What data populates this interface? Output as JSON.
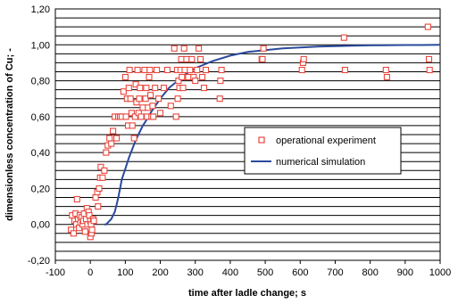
{
  "chart_data": {
    "type": "scatter",
    "title": "",
    "xlabel": "time after ladle change; s",
    "ylabel": "dimensionless concentration of Cu; -",
    "xlim": [
      -100,
      1000
    ],
    "ylim": [
      -0.2,
      1.2
    ],
    "x_ticks": [
      "-100",
      "0",
      "100",
      "200",
      "300",
      "400",
      "500",
      "600",
      "700",
      "800",
      "900",
      "1000"
    ],
    "y_ticks": [
      "-0,20",
      "0,00",
      "0,20",
      "0,40",
      "0,60",
      "0,80",
      "1,00",
      "1,20"
    ],
    "grid": "horizontal",
    "legend_position": "center-right",
    "colors": {
      "experiment": "#e8463c",
      "simulation": "#2a4a9c"
    },
    "series": [
      {
        "name": "operational experiment",
        "kind": "scatter",
        "x": [
          -55,
          -52,
          -48,
          -45,
          -42,
          -40,
          -38,
          -35,
          -32,
          -30,
          -28,
          -25,
          -22,
          -20,
          -18,
          -15,
          -12,
          -10,
          -8,
          -5,
          -3,
          0,
          0,
          2,
          3,
          5,
          8,
          10,
          15,
          20,
          22,
          25,
          28,
          30,
          35,
          40,
          45,
          50,
          55,
          60,
          65,
          70,
          75,
          80,
          85,
          90,
          95,
          100,
          102,
          105,
          108,
          110,
          112,
          115,
          118,
          120,
          125,
          128,
          130,
          132,
          135,
          138,
          140,
          142,
          145,
          150,
          155,
          158,
          160,
          162,
          165,
          168,
          170,
          172,
          175,
          178,
          180,
          185,
          190,
          195,
          200,
          210,
          220,
          230,
          240,
          245,
          248,
          250,
          252,
          255,
          258,
          260,
          262,
          265,
          268,
          270,
          275,
          280,
          285,
          290,
          295,
          300,
          305,
          310,
          315,
          320,
          325,
          330,
          370,
          372,
          375,
          490,
          492,
          495,
          605,
          608,
          610,
          725,
          728,
          845,
          848,
          965,
          968,
          970
        ],
        "y": [
          -0.03,
          0.05,
          -0.05,
          0.02,
          0.06,
          0.0,
          0.14,
          0.03,
          -0.02,
          0.05,
          0.01,
          0.04,
          0.0,
          0.02,
          0.06,
          -0.04,
          0.03,
          0.09,
          0.0,
          0.07,
          0.05,
          -0.07,
          0.02,
          0.0,
          -0.05,
          -0.03,
          0.03,
          0.02,
          0.15,
          0.18,
          0.1,
          0.2,
          0.26,
          0.32,
          0.26,
          0.3,
          0.4,
          0.44,
          0.48,
          0.45,
          0.52,
          0.6,
          0.48,
          0.6,
          0.6,
          0.6,
          0.74,
          0.82,
          0.6,
          0.7,
          0.55,
          0.76,
          0.86,
          0.7,
          0.62,
          0.55,
          0.48,
          0.6,
          0.78,
          0.68,
          0.86,
          0.62,
          0.7,
          0.76,
          0.6,
          0.65,
          0.86,
          0.7,
          0.76,
          0.6,
          0.65,
          0.82,
          0.86,
          0.72,
          0.6,
          0.66,
          0.6,
          0.76,
          0.86,
          0.7,
          0.62,
          0.76,
          0.86,
          0.66,
          0.98,
          0.6,
          0.86,
          0.7,
          0.8,
          0.76,
          0.86,
          0.92,
          0.82,
          0.76,
          0.98,
          0.86,
          0.92,
          0.82,
          0.86,
          0.92,
          0.82,
          0.8,
          0.86,
          0.98,
          0.92,
          0.82,
          0.76,
          0.86,
          0.7,
          0.8,
          0.86,
          0.92,
          0.92,
          0.98,
          0.86,
          0.9,
          0.92,
          1.04,
          0.86,
          0.86,
          0.82,
          1.1,
          0.92,
          0.86
        ]
      },
      {
        "name": "numerical simulation",
        "kind": "line",
        "x": [
          40,
          45,
          50,
          55,
          60,
          65,
          70,
          75,
          80,
          85,
          90,
          100,
          110,
          120,
          130,
          140,
          150,
          160,
          175,
          200,
          225,
          250,
          275,
          300,
          350,
          400,
          450,
          500,
          550,
          600,
          650,
          700,
          750,
          800,
          850,
          900,
          950,
          1000
        ],
        "y": [
          0.0,
          0.0,
          0.01,
          0.02,
          0.03,
          0.05,
          0.07,
          0.11,
          0.15,
          0.2,
          0.25,
          0.31,
          0.37,
          0.42,
          0.47,
          0.51,
          0.55,
          0.58,
          0.63,
          0.7,
          0.76,
          0.8,
          0.84,
          0.87,
          0.91,
          0.94,
          0.96,
          0.97,
          0.98,
          0.985,
          0.99,
          0.993,
          0.995,
          0.997,
          0.998,
          0.999,
          0.999,
          1.0
        ]
      }
    ]
  }
}
